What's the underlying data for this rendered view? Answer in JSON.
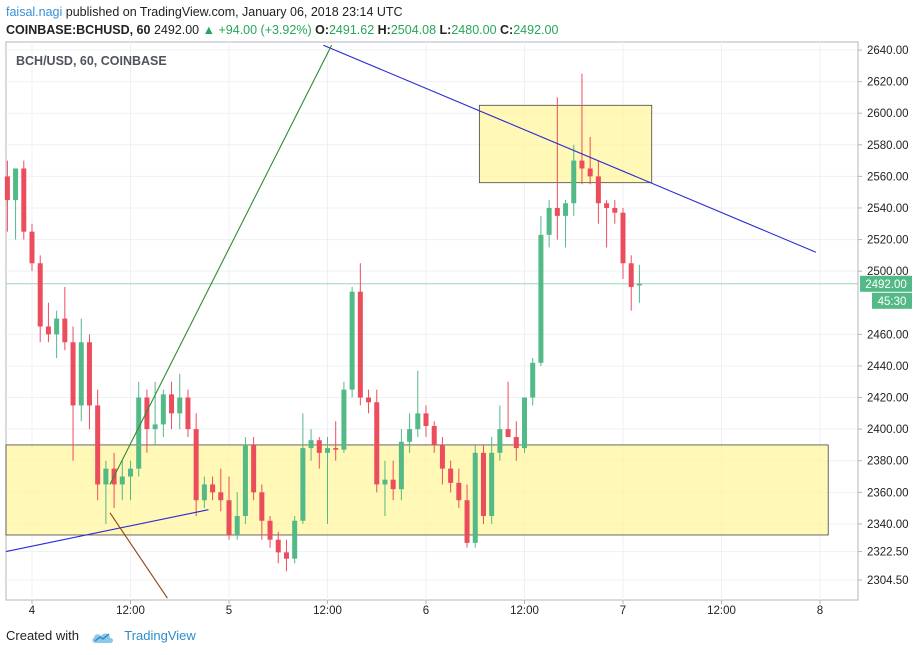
{
  "header": {
    "author": "faisal.nagi",
    "published_text": "published on TradingView.com, January 06, 2018 23:14 UTC"
  },
  "ohlc": {
    "symbol": "COINBASE:BCHUSD, 60",
    "last": "2492.00",
    "change": "+94.00 (+3.92%)",
    "o_label": "O:",
    "o": "2491.62",
    "h_label": "H:",
    "h": "2504.08",
    "l_label": "L:",
    "l": "2480.00",
    "c_label": "C:",
    "c": "2492.00"
  },
  "footer": {
    "created_with": "Created with",
    "brand": "TradingView"
  },
  "colors": {
    "up": "#53b987",
    "down": "#eb4d5c",
    "orange": "#f7a35c",
    "zone": "#fff59d",
    "trend_blue": "#2b2bd6",
    "trend_green": "#2e8b2e",
    "trend_brown": "#8b4513"
  },
  "chart_data": {
    "type": "candlestick",
    "title": "BCH/USD, 60, COINBASE",
    "ylim": [
      2290,
      2650
    ],
    "y_ticks": [
      2304.5,
      2322.5,
      2340,
      2360,
      2380,
      2400,
      2420,
      2440,
      2460,
      2500,
      2520,
      2540,
      2560,
      2580,
      2600,
      2620,
      2640
    ],
    "x_ticks": [
      {
        "label": "4",
        "t": 3
      },
      {
        "label": "12:00",
        "t": 15
      },
      {
        "label": "5",
        "t": 27
      },
      {
        "label": "12:00",
        "t": 39
      },
      {
        "label": "6",
        "t": 51
      },
      {
        "label": "12:00",
        "t": 63
      },
      {
        "label": "7",
        "t": 75
      },
      {
        "label": "12:00",
        "t": 87
      },
      {
        "label": "8",
        "t": 99
      }
    ],
    "last_price": "2492.00",
    "countdown": "45:30",
    "candles": [
      {
        "t": 0,
        "o": 2560,
        "h": 2570,
        "l": 2525,
        "c": 2545
      },
      {
        "t": 1,
        "o": 2545,
        "h": 2565,
        "l": 2520,
        "c": 2565
      },
      {
        "t": 2,
        "o": 2565,
        "h": 2570,
        "l": 2520,
        "c": 2525
      },
      {
        "t": 3,
        "o": 2525,
        "h": 2530,
        "l": 2500,
        "c": 2505
      },
      {
        "t": 4,
        "o": 2505,
        "h": 2510,
        "l": 2455,
        "c": 2465
      },
      {
        "t": 5,
        "o": 2465,
        "h": 2480,
        "l": 2455,
        "c": 2460
      },
      {
        "t": 6,
        "o": 2460,
        "h": 2475,
        "l": 2445,
        "c": 2470
      },
      {
        "t": 7,
        "o": 2470,
        "h": 2490,
        "l": 2450,
        "c": 2455
      },
      {
        "t": 8,
        "o": 2455,
        "h": 2465,
        "l": 2380,
        "c": 2415
      },
      {
        "t": 9,
        "o": 2415,
        "h": 2470,
        "l": 2405,
        "c": 2455
      },
      {
        "t": 10,
        "o": 2455,
        "h": 2460,
        "l": 2400,
        "c": 2415
      },
      {
        "t": 11,
        "o": 2415,
        "h": 2425,
        "l": 2355,
        "c": 2365
      },
      {
        "t": 12,
        "o": 2365,
        "h": 2380,
        "l": 2340,
        "c": 2375
      },
      {
        "t": 13,
        "o": 2375,
        "h": 2385,
        "l": 2350,
        "c": 2365
      },
      {
        "t": 14,
        "o": 2365,
        "h": 2380,
        "l": 2355,
        "c": 2370
      },
      {
        "t": 15,
        "o": 2370,
        "h": 2380,
        "l": 2355,
        "c": 2375
      },
      {
        "t": 16,
        "o": 2375,
        "h": 2430,
        "l": 2370,
        "c": 2420
      },
      {
        "t": 17,
        "o": 2420,
        "h": 2425,
        "l": 2385,
        "c": 2400
      },
      {
        "t": 18,
        "o": 2400,
        "h": 2430,
        "l": 2390,
        "c": 2403
      },
      {
        "t": 19,
        "o": 2403,
        "h": 2425,
        "l": 2395,
        "c": 2422
      },
      {
        "t": 20,
        "o": 2422,
        "h": 2430,
        "l": 2400,
        "c": 2410
      },
      {
        "t": 21,
        "o": 2410,
        "h": 2435,
        "l": 2400,
        "c": 2420
      },
      {
        "t": 22,
        "o": 2420,
        "h": 2425,
        "l": 2395,
        "c": 2400
      },
      {
        "t": 23,
        "o": 2400,
        "h": 2410,
        "l": 2345,
        "c": 2355
      },
      {
        "t": 24,
        "o": 2355,
        "h": 2370,
        "l": 2350,
        "c": 2365
      },
      {
        "t": 25,
        "o": 2365,
        "h": 2370,
        "l": 2355,
        "c": 2360
      },
      {
        "t": 26,
        "o": 2360,
        "h": 2375,
        "l": 2348,
        "c": 2355
      },
      {
        "t": 27,
        "o": 2355,
        "h": 2370,
        "l": 2330,
        "c": 2333
      },
      {
        "t": 28,
        "o": 2333,
        "h": 2360,
        "l": 2330,
        "c": 2345
      },
      {
        "t": 29,
        "o": 2345,
        "h": 2395,
        "l": 2340,
        "c": 2390
      },
      {
        "t": 30,
        "o": 2390,
        "h": 2395,
        "l": 2355,
        "c": 2360
      },
      {
        "t": 31,
        "o": 2360,
        "h": 2365,
        "l": 2330,
        "c": 2342
      },
      {
        "t": 32,
        "o": 2342,
        "h": 2345,
        "l": 2325,
        "c": 2330
      },
      {
        "t": 33,
        "o": 2330,
        "h": 2335,
        "l": 2315,
        "c": 2322
      },
      {
        "t": 34,
        "o": 2322,
        "h": 2330,
        "l": 2310,
        "c": 2318
      },
      {
        "t": 35,
        "o": 2318,
        "h": 2345,
        "l": 2315,
        "c": 2342
      },
      {
        "t": 36,
        "o": 2342,
        "h": 2410,
        "l": 2340,
        "c": 2388
      },
      {
        "t": 37,
        "o": 2388,
        "h": 2400,
        "l": 2380,
        "c": 2393
      },
      {
        "t": 38,
        "o": 2393,
        "h": 2395,
        "l": 2375,
        "c": 2385
      },
      {
        "t": 39,
        "o": 2385,
        "h": 2395,
        "l": 2340,
        "c": 2388
      },
      {
        "t": 40,
        "o": 2388,
        "h": 2405,
        "l": 2380,
        "c": 2387
      },
      {
        "t": 41,
        "o": 2387,
        "h": 2430,
        "l": 2385,
        "c": 2425
      },
      {
        "t": 42,
        "o": 2425,
        "h": 2490,
        "l": 2420,
        "c": 2487
      },
      {
        "t": 43,
        "o": 2487,
        "h": 2505,
        "l": 2415,
        "c": 2420
      },
      {
        "t": 44,
        "o": 2420,
        "h": 2425,
        "l": 2410,
        "c": 2417
      },
      {
        "t": 45,
        "o": 2417,
        "h": 2425,
        "l": 2360,
        "c": 2365
      },
      {
        "t": 46,
        "o": 2365,
        "h": 2380,
        "l": 2345,
        "c": 2368
      },
      {
        "t": 47,
        "o": 2368,
        "h": 2380,
        "l": 2355,
        "c": 2362
      },
      {
        "t": 48,
        "o": 2362,
        "h": 2400,
        "l": 2355,
        "c": 2392
      },
      {
        "t": 49,
        "o": 2392,
        "h": 2410,
        "l": 2385,
        "c": 2400
      },
      {
        "t": 50,
        "o": 2400,
        "h": 2437,
        "l": 2395,
        "c": 2410
      },
      {
        "t": 51,
        "o": 2410,
        "h": 2415,
        "l": 2395,
        "c": 2402
      },
      {
        "t": 52,
        "o": 2402,
        "h": 2405,
        "l": 2385,
        "c": 2390
      },
      {
        "t": 53,
        "o": 2390,
        "h": 2395,
        "l": 2365,
        "c": 2375
      },
      {
        "t": 54,
        "o": 2375,
        "h": 2380,
        "l": 2360,
        "c": 2366
      },
      {
        "t": 55,
        "o": 2366,
        "h": 2375,
        "l": 2350,
        "c": 2355
      },
      {
        "t": 56,
        "o": 2355,
        "h": 2365,
        "l": 2325,
        "c": 2328
      },
      {
        "t": 57,
        "o": 2328,
        "h": 2390,
        "l": 2325,
        "c": 2385
      },
      {
        "t": 58,
        "o": 2385,
        "h": 2390,
        "l": 2340,
        "c": 2345
      },
      {
        "t": 59,
        "o": 2345,
        "h": 2395,
        "l": 2340,
        "c": 2385
      },
      {
        "t": 60,
        "o": 2385,
        "h": 2415,
        "l": 2380,
        "c": 2400
      },
      {
        "t": 61,
        "o": 2400,
        "h": 2430,
        "l": 2395,
        "c": 2395
      },
      {
        "t": 62,
        "o": 2395,
        "h": 2405,
        "l": 2380,
        "c": 2388
      },
      {
        "t": 63,
        "o": 2388,
        "h": 2420,
        "l": 2385,
        "c": 2420
      },
      {
        "t": 64,
        "o": 2420,
        "h": 2445,
        "l": 2415,
        "c": 2442
      },
      {
        "t": 65,
        "o": 2442,
        "h": 2535,
        "l": 2440,
        "c": 2523
      },
      {
        "t": 66,
        "o": 2523,
        "h": 2545,
        "l": 2515,
        "c": 2540
      },
      {
        "t": 67,
        "o": 2540,
        "h": 2610,
        "l": 2520,
        "c": 2535
      },
      {
        "t": 68,
        "o": 2535,
        "h": 2545,
        "l": 2515,
        "c": 2543
      },
      {
        "t": 69,
        "o": 2543,
        "h": 2580,
        "l": 2535,
        "c": 2570
      },
      {
        "t": 70,
        "o": 2570,
        "h": 2625,
        "l": 2555,
        "c": 2565
      },
      {
        "t": 71,
        "o": 2565,
        "h": 2585,
        "l": 2555,
        "c": 2560
      },
      {
        "t": 72,
        "o": 2560,
        "h": 2570,
        "l": 2530,
        "c": 2543
      },
      {
        "t": 73,
        "o": 2543,
        "h": 2545,
        "l": 2515,
        "c": 2540
      },
      {
        "t": 74,
        "o": 2540,
        "h": 2545,
        "l": 2530,
        "c": 2537
      },
      {
        "t": 75,
        "o": 2537,
        "h": 2540,
        "l": 2495,
        "c": 2505
      },
      {
        "t": 76,
        "o": 2505,
        "h": 2510,
        "l": 2475,
        "c": 2490
      },
      {
        "t": 77,
        "o": 2491,
        "h": 2504,
        "l": 2480,
        "c": 2492
      }
    ],
    "zones": [
      {
        "t1": -1,
        "t2": 100,
        "y1": 2333,
        "y2": 2390
      },
      {
        "t1": 57.5,
        "t2": 78.5,
        "y1": 2556,
        "y2": 2605
      }
    ],
    "trendlines": [
      {
        "color": "blue",
        "t1": -1,
        "y1": 2322.5,
        "t2": 24.5,
        "y1b": 0,
        "y2": 2349
      },
      {
        "color": "blue",
        "t1": 38.5,
        "y1": 2643,
        "t2": 98.5,
        "y2": 2512
      },
      {
        "color": "green",
        "t1": 12.5,
        "y1": 2365,
        "t2": 39.5,
        "y2": 2643
      },
      {
        "color": "brown",
        "t1": 12.5,
        "y1": 2347,
        "t2": 19.5,
        "y2": 2293
      }
    ]
  }
}
